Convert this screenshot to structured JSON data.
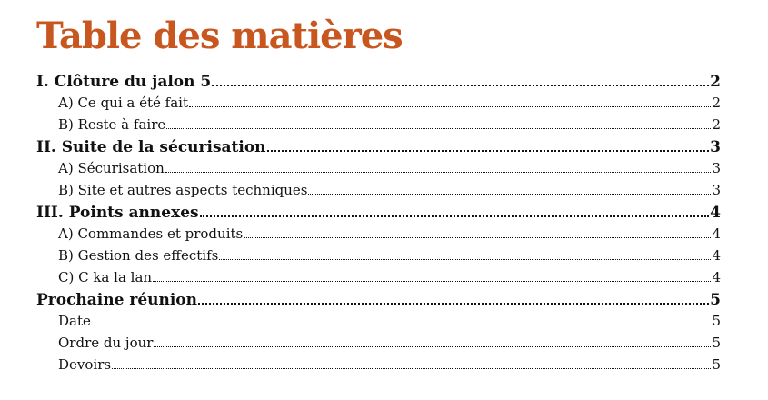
{
  "colors": {
    "title": "#c8561f",
    "text": "#111111"
  },
  "toc": {
    "title": "Table des matières",
    "entries": [
      {
        "level": 1,
        "label": "I. Clôture du jalon 5",
        "page": "2"
      },
      {
        "level": 2,
        "label": "A) Ce qui a été fait",
        "page": "2"
      },
      {
        "level": 2,
        "label": "B) Reste à faire",
        "page": "2"
      },
      {
        "level": 1,
        "label": "II. Suite de la sécurisation",
        "page": "3"
      },
      {
        "level": 2,
        "label": "A) Sécurisation",
        "page": "3"
      },
      {
        "level": 2,
        "label": "B) Site et autres aspects techniques",
        "page": "3"
      },
      {
        "level": 1,
        "label": "III. Points annexes",
        "page": "4"
      },
      {
        "level": 2,
        "label": "A) Commandes et produits",
        "page": "4"
      },
      {
        "level": 2,
        "label": "B) Gestion des effectifs",
        "page": "4"
      },
      {
        "level": 2,
        "label": "C) C ka la lan",
        "page": "4"
      },
      {
        "level": 1,
        "label": "Prochaine réunion",
        "page": "5"
      },
      {
        "level": 2,
        "label": "Date",
        "page": "5"
      },
      {
        "level": 2,
        "label": "Ordre du jour",
        "page": "5"
      },
      {
        "level": 2,
        "label": "Devoirs",
        "page": "5"
      }
    ]
  }
}
